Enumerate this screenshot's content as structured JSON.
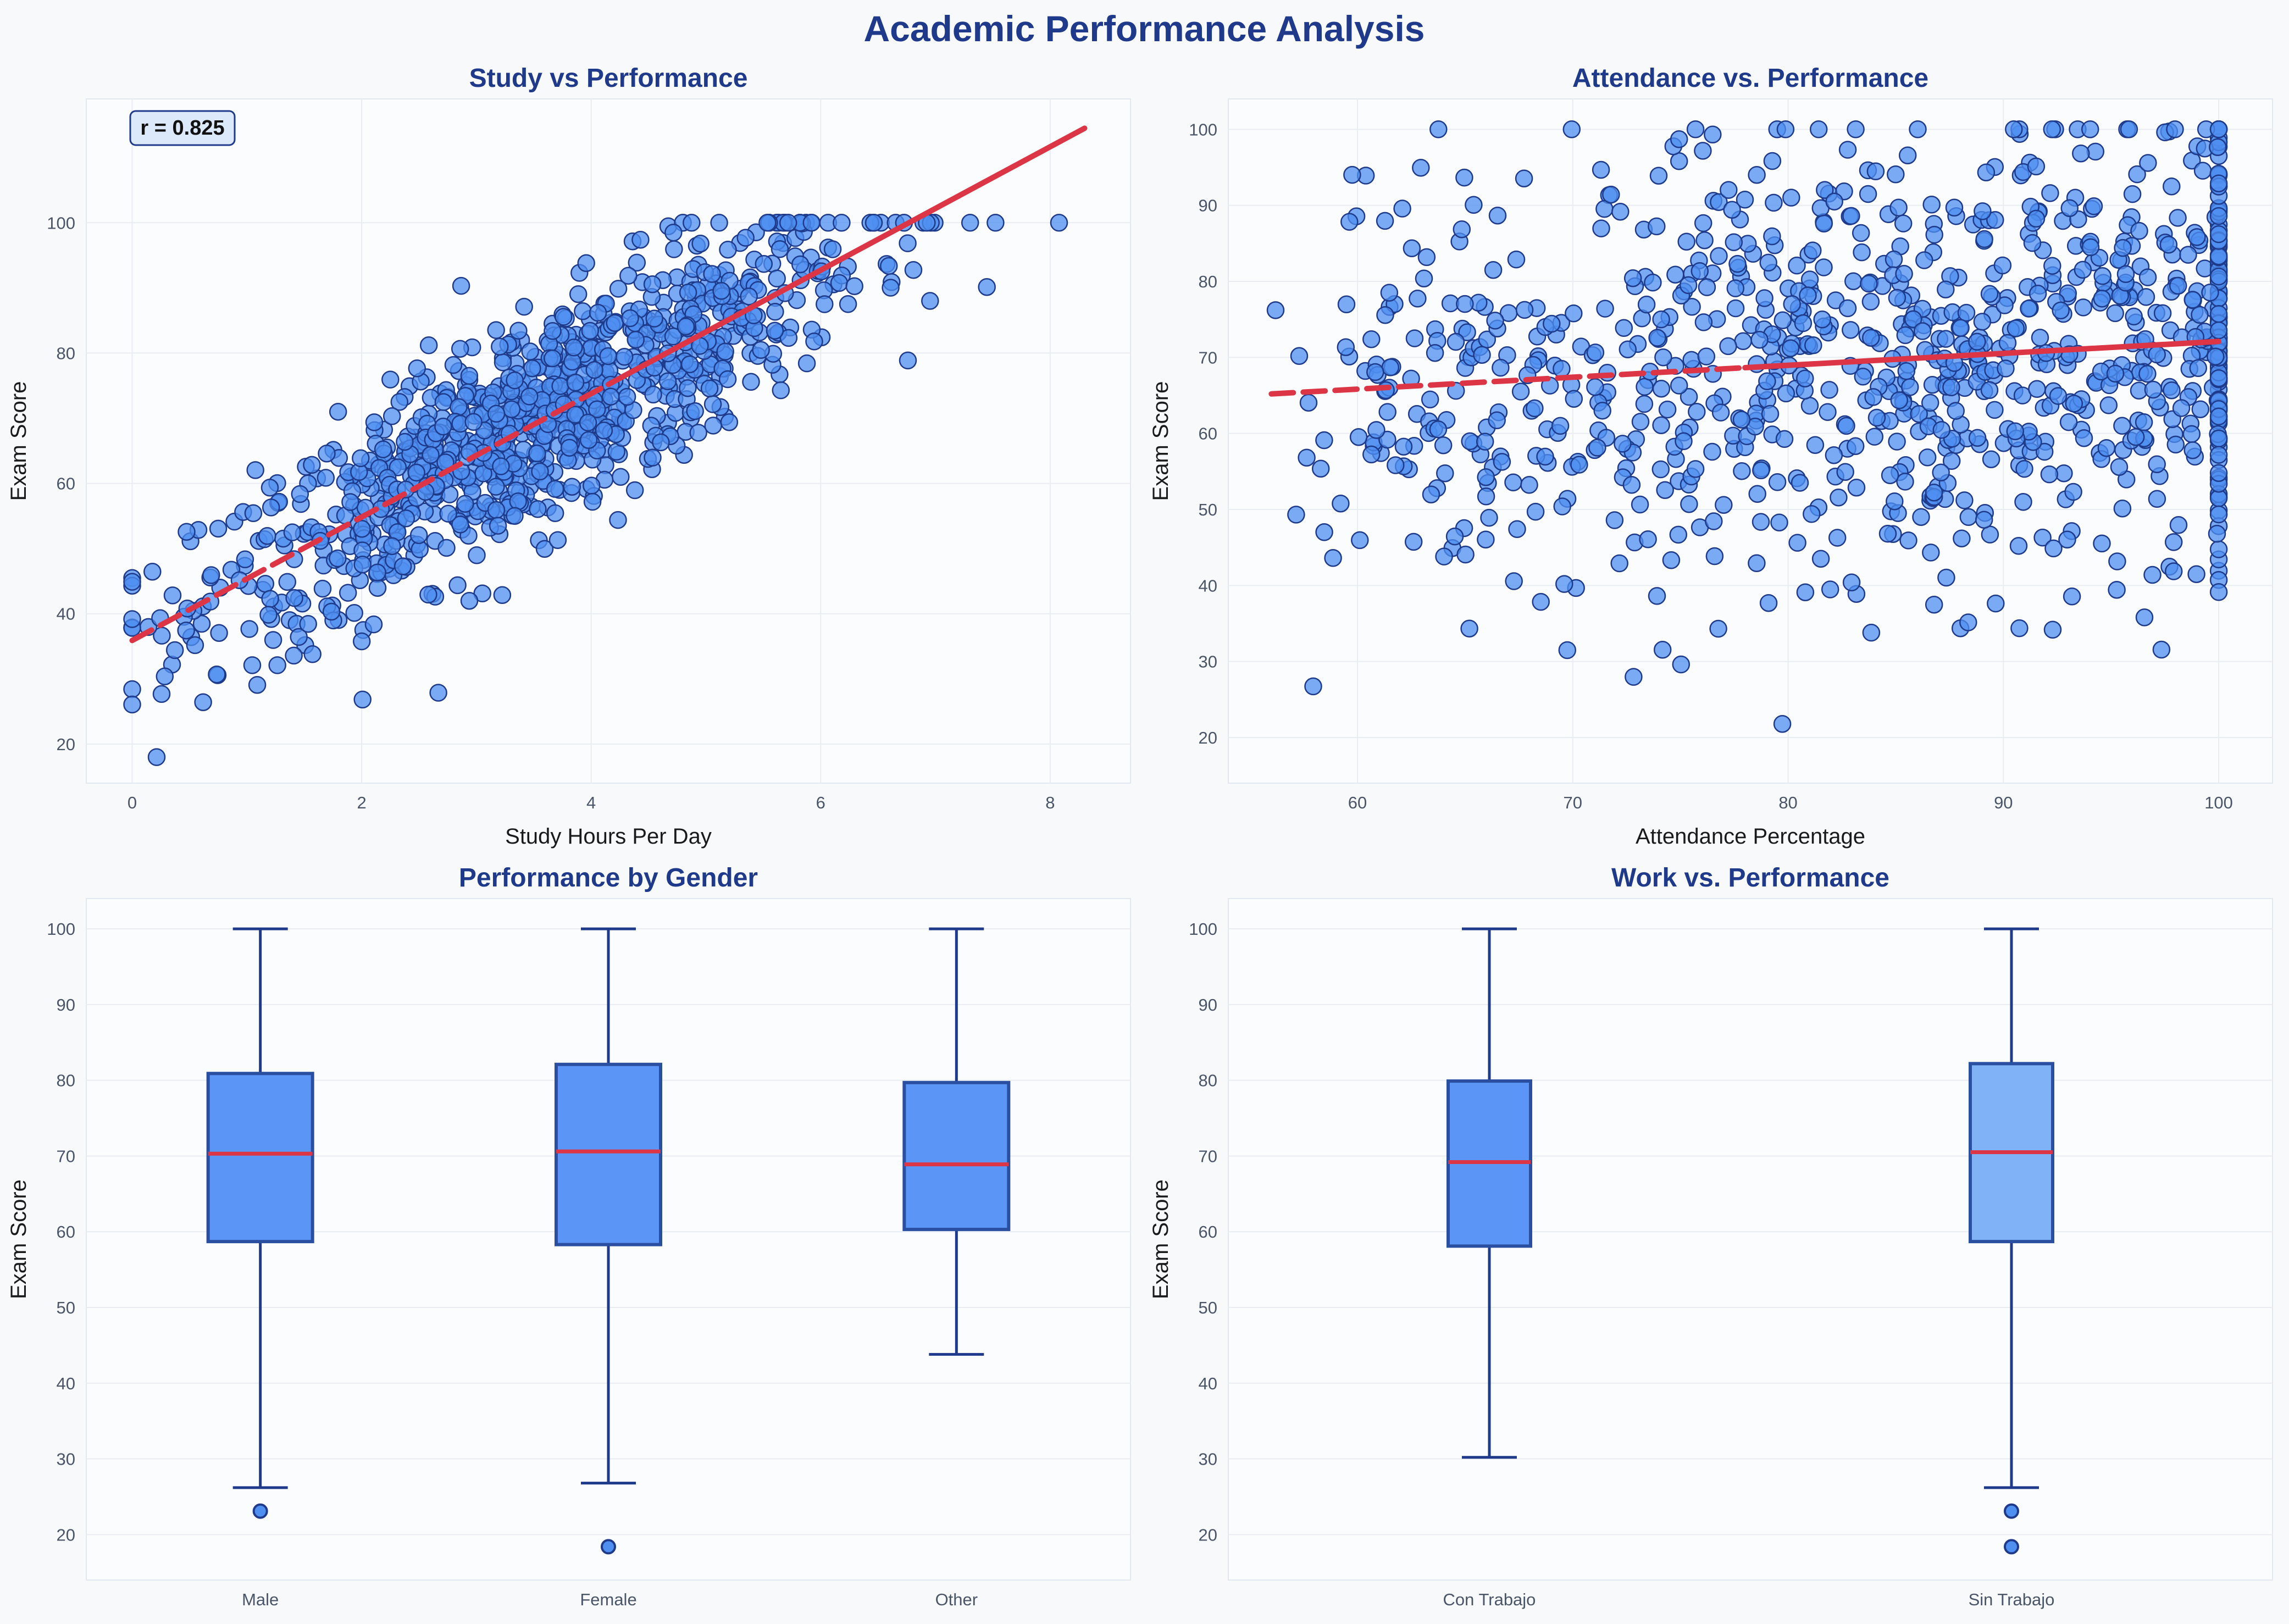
{
  "figure_title": "Academic Performance Analysis",
  "colors": {
    "background": "#f7f9fb",
    "panel_bg": "#fbfcfe",
    "title_blue": "#1f3a8a",
    "point_fill": "#4f8ff0",
    "point_edge": "#1e3a8a",
    "trend_red": "#dc3545",
    "box_fill_primary": "#5b95f5",
    "box_fill_secondary": "#7fb2f7",
    "box_edge": "#2b4fa0",
    "whisker": "#1f3a8a",
    "median": "#dc3545",
    "grid": "#e8edf3",
    "tick_text": "#4a5568",
    "label_text": "#1a1a1a"
  },
  "chart_data": [
    {
      "type": "scatter",
      "title": "Study vs Performance",
      "xlabel": "Study Hours Per Day",
      "ylabel": "Exam Score",
      "xlim": [
        -0.4,
        8.7
      ],
      "ylim": [
        14,
        119
      ],
      "xticks": [
        0,
        2,
        4,
        6,
        8
      ],
      "yticks": [
        20,
        40,
        60,
        80,
        100
      ],
      "grid": true,
      "annotation": "r = 0.825",
      "trend_line": {
        "x0": 0,
        "y0": 35.9,
        "x1": 8.3,
        "y1": 114.5,
        "style": "dashed-then-solid"
      },
      "point_generator": {
        "n": 1000,
        "relation": "y = 35.9 + 9.5*x + noise",
        "x_range": [
          0,
          8.3
        ],
        "y_clip": [
          18,
          100
        ]
      }
    },
    {
      "type": "scatter",
      "title": "Attendance vs. Performance",
      "xlabel": "Attendance Percentage",
      "ylabel": "Exam Score",
      "xlim": [
        54,
        102.5
      ],
      "ylim": [
        14,
        104
      ],
      "xticks": [
        60,
        70,
        80,
        90,
        100
      ],
      "yticks": [
        20,
        30,
        40,
        50,
        60,
        70,
        80,
        90,
        100
      ],
      "grid": true,
      "trend_line": {
        "x0": 56,
        "y0": 65.2,
        "x1": 100,
        "y1": 72.1,
        "style": "dashed-then-solid"
      },
      "point_generator": {
        "n": 1000,
        "relation": "weak positive",
        "x_range": [
          56,
          100
        ],
        "y_clip": [
          18,
          100
        ]
      }
    },
    {
      "type": "box",
      "title": "Performance by Gender",
      "xlabel": "",
      "ylabel": "Exam Score",
      "ylim": [
        14,
        104
      ],
      "yticks": [
        20,
        30,
        40,
        50,
        60,
        70,
        80,
        90,
        100
      ],
      "grid": true,
      "categories": [
        "Male",
        "Female",
        "Other"
      ],
      "boxes": [
        {
          "whisker_low": 26.2,
          "q1": 58.7,
          "median": 70.3,
          "q3": 80.9,
          "whisker_high": 100,
          "fliers": [
            23.1
          ]
        },
        {
          "whisker_low": 26.8,
          "q1": 58.3,
          "median": 70.6,
          "q3": 82.1,
          "whisker_high": 100,
          "fliers": [
            18.4
          ]
        },
        {
          "whisker_low": 43.8,
          "q1": 60.3,
          "median": 68.9,
          "q3": 79.7,
          "whisker_high": 100,
          "fliers": []
        }
      ]
    },
    {
      "type": "box",
      "title": "Work vs. Performance",
      "xlabel": "",
      "ylabel": "Exam Score",
      "ylim": [
        14,
        104
      ],
      "yticks": [
        20,
        30,
        40,
        50,
        60,
        70,
        80,
        90,
        100
      ],
      "grid": true,
      "categories": [
        "Con Trabajo",
        "Sin Trabajo"
      ],
      "boxes": [
        {
          "whisker_low": 30.2,
          "q1": 58.1,
          "median": 69.2,
          "q3": 79.9,
          "whisker_high": 100,
          "fliers": []
        },
        {
          "whisker_low": 26.2,
          "q1": 58.7,
          "median": 70.5,
          "q3": 82.2,
          "whisker_high": 100,
          "fliers": [
            23.1,
            18.4
          ]
        }
      ]
    }
  ]
}
